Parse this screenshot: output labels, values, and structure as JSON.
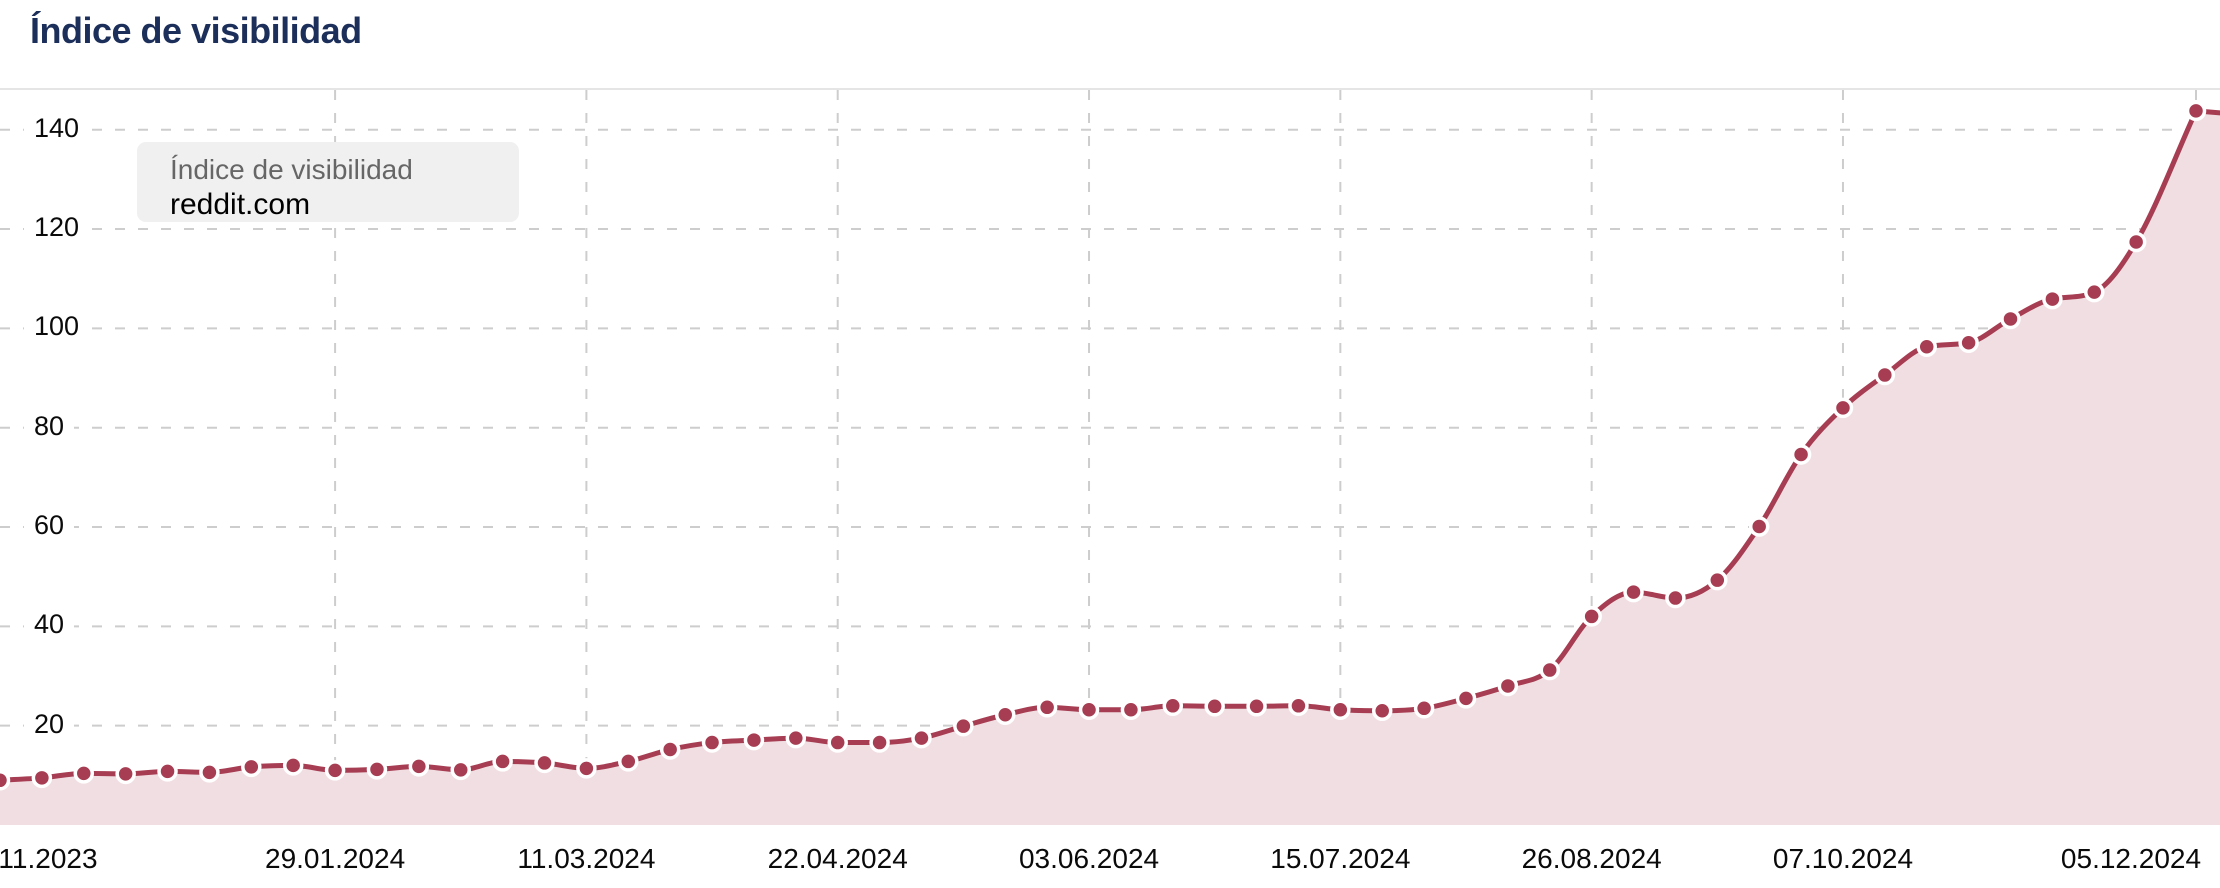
{
  "header": {
    "title": "Índice de visibilidad"
  },
  "legend": {
    "label": "Índice de visibilidad",
    "domain": "reddit.com"
  },
  "colors": {
    "title_text": "#1c2f5a",
    "line": "#a63d52",
    "point_fill": "#a63d52",
    "point_ring": "#ffffff",
    "area_fill": "#f1dee2",
    "grid": "#cdcdcd",
    "axis_text": "#0a0a0a",
    "legend_bg": "#f0f0f0",
    "legend_label_text": "#666666",
    "legend_domain_text": "#000000",
    "background": "#ffffff"
  },
  "chart_data": {
    "type": "area",
    "title": "Índice de visibilidad",
    "legend_position": "top-left",
    "grid": true,
    "grid_style": "dashed",
    "ylim": [
      0,
      148
    ],
    "y_ticks": [
      20,
      40,
      60,
      80,
      100,
      120,
      140
    ],
    "x_start_date": "04.12.2023",
    "x_end_date": "05.12.2024",
    "x_tick_labels": [
      "11.2023",
      "29.01.2024",
      "11.03.2024",
      "22.04.2024",
      "03.06.2024",
      "15.07.2024",
      "26.08.2024",
      "07.10.2024",
      "05.12.2024"
    ],
    "series": [
      {
        "name": "reddit.com",
        "dates": [
          "04.12.2023",
          "11.12.2023",
          "18.12.2023",
          "25.12.2023",
          "01.01.2024",
          "08.01.2024",
          "15.01.2024",
          "22.01.2024",
          "29.01.2024",
          "05.02.2024",
          "12.02.2024",
          "19.02.2024",
          "26.02.2024",
          "04.03.2024",
          "11.03.2024",
          "18.03.2024",
          "25.03.2024",
          "01.04.2024",
          "08.04.2024",
          "15.04.2024",
          "22.04.2024",
          "29.04.2024",
          "06.05.2024",
          "13.05.2024",
          "20.05.2024",
          "27.05.2024",
          "03.06.2024",
          "10.06.2024",
          "17.06.2024",
          "24.06.2024",
          "01.07.2024",
          "08.07.2024",
          "15.07.2024",
          "22.07.2024",
          "29.07.2024",
          "05.08.2024",
          "12.08.2024",
          "19.08.2024",
          "26.08.2024",
          "02.09.2024",
          "09.09.2024",
          "16.09.2024",
          "23.09.2024",
          "30.09.2024",
          "07.10.2024",
          "14.10.2024",
          "21.10.2024",
          "28.10.2024",
          "04.11.2024",
          "11.11.2024",
          "18.11.2024",
          "25.11.2024",
          "05.12.2024"
        ],
        "values": [
          9.0,
          9.5,
          10.4,
          10.3,
          10.8,
          10.6,
          11.7,
          12.0,
          11.0,
          11.2,
          11.8,
          11.1,
          12.8,
          12.5,
          11.4,
          12.8,
          15.2,
          16.6,
          17.1,
          17.5,
          16.6,
          16.6,
          17.5,
          19.9,
          22.2,
          23.7,
          23.2,
          23.2,
          24.0,
          23.9,
          23.9,
          24.0,
          23.2,
          23.0,
          23.5,
          25.5,
          28.0,
          31.2,
          42.0,
          46.9,
          45.7,
          49.3,
          60.1,
          74.6,
          84.0,
          90.6,
          96.3,
          97.1,
          101.9,
          105.9,
          107.3,
          117.4,
          143.8
        ]
      }
    ]
  }
}
